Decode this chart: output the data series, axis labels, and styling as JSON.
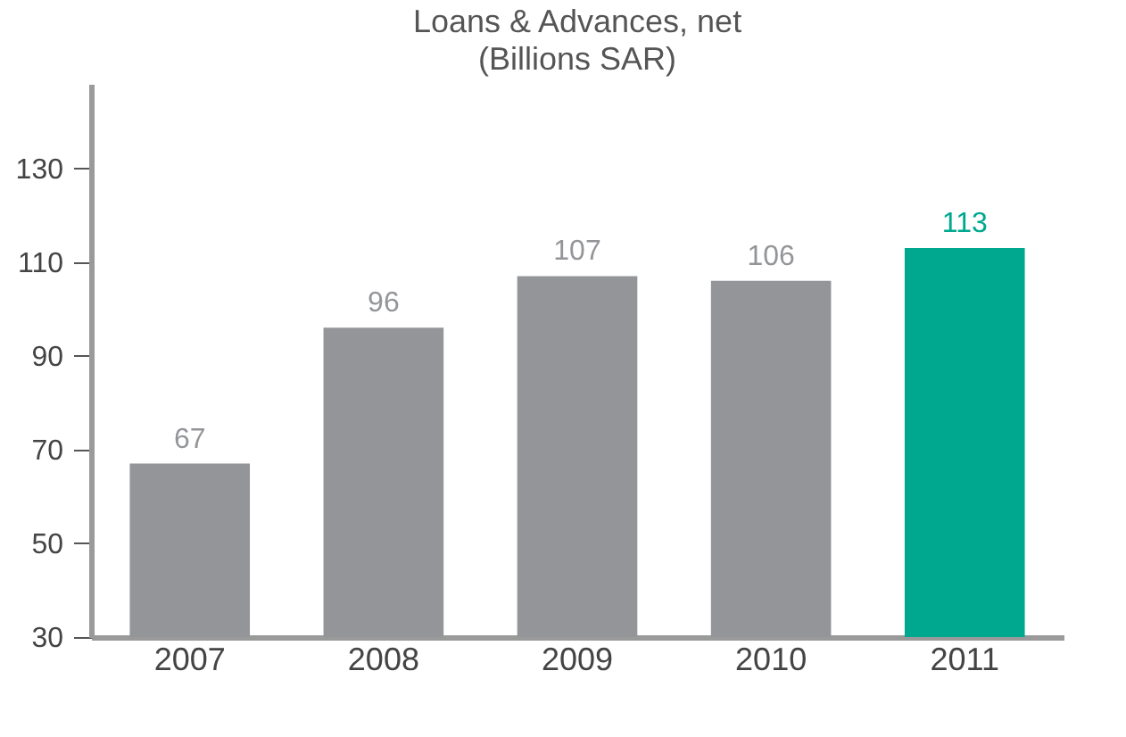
{
  "chart_data": {
    "type": "bar",
    "title": "Loans & Advances, net",
    "subtitle": "(Billions SAR)",
    "categories": [
      "2007",
      "2008",
      "2009",
      "2010",
      "2011"
    ],
    "values": [
      67,
      96,
      107,
      106,
      113
    ],
    "colors": [
      "#939598",
      "#939598",
      "#939598",
      "#939598",
      "#00a88f"
    ],
    "ylim": [
      30,
      148
    ],
    "yticks": [
      30,
      50,
      70,
      90,
      110,
      130
    ],
    "grid": false,
    "data_labels": true
  }
}
